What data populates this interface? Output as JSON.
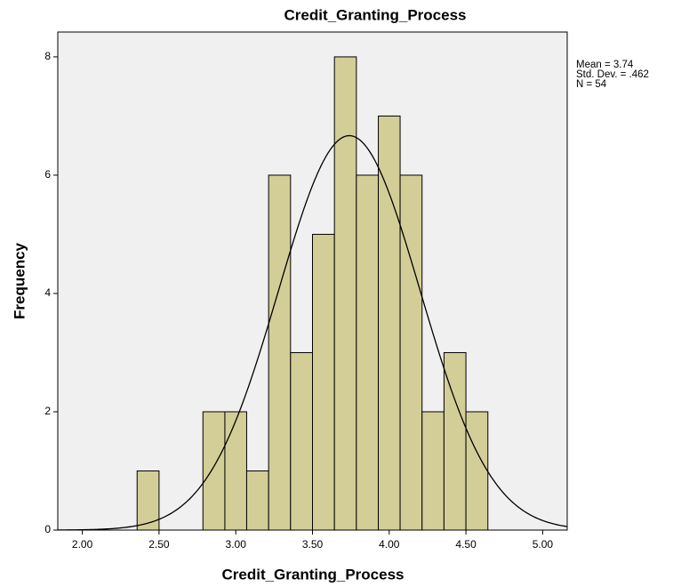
{
  "chart_data": {
    "type": "histogram",
    "title": "Credit_Granting_Process",
    "x_label": "Credit_Granting_Process",
    "y_label": "Frequency",
    "bins": [
      2.357,
      2.5,
      2.643,
      2.786,
      2.929,
      3.071,
      3.214,
      3.357,
      3.5,
      3.643,
      3.786,
      3.929,
      4.071,
      4.214,
      4.357,
      4.5,
      4.643
    ],
    "values": [
      1,
      0,
      0,
      2,
      2,
      1,
      6,
      3,
      5,
      8,
      6,
      7,
      6,
      2,
      3,
      2
    ],
    "color": "#d3ce98",
    "xlim": [
      1.84,
      5.16
    ],
    "xticks": [
      {
        "value": 2,
        "label": "2.00"
      },
      {
        "value": 2.5,
        "label": "2.50"
      },
      {
        "value": 3,
        "label": "3.00"
      },
      {
        "value": 3.5,
        "label": "3.50"
      },
      {
        "value": 4,
        "label": "4.00"
      },
      {
        "value": 4.5,
        "label": "4.50"
      },
      {
        "value": 5,
        "label": "5.00"
      }
    ],
    "ylim": [
      0,
      8.42
    ],
    "yticks": [
      0,
      2,
      4,
      6,
      8
    ],
    "stats": [
      {
        "value": 3.74,
        "label": "Mean = 3.74"
      },
      {
        "value": 0.462,
        "label": "Std. Dev. = .462"
      },
      {
        "value": 54,
        "label": "N = 54"
      }
    ]
  }
}
